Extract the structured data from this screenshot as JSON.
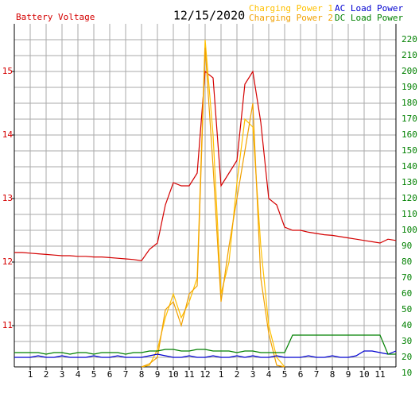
{
  "chart_data": {
    "type": "line",
    "title": "12/15/2020",
    "y_label": "Battery Voltage",
    "x": [
      0,
      0.5,
      1,
      1.5,
      2,
      2.5,
      3,
      3.5,
      4,
      4.5,
      5,
      5.5,
      6,
      6.5,
      7,
      7.5,
      8,
      8.5,
      9,
      9.5,
      10,
      10.5,
      11,
      11.5,
      12,
      12.5,
      13,
      13.5,
      14,
      14.5,
      15,
      15.5,
      16,
      16.5,
      17,
      17.5,
      18,
      18.5,
      19,
      19.5,
      20,
      20.5,
      21,
      21.5,
      22,
      22.5,
      23,
      23.5,
      24
    ],
    "xlim": [
      0,
      24
    ],
    "xticks": [
      1,
      2,
      3,
      4,
      5,
      6,
      7,
      8,
      9,
      10,
      11,
      12,
      {
        "value": 13,
        "label": "1"
      },
      {
        "value": 14,
        "label": "2"
      },
      {
        "value": 15,
        "label": "3"
      },
      {
        "value": 16,
        "label": "4"
      },
      {
        "value": 17,
        "label": "5"
      },
      {
        "value": 18,
        "label": "6"
      },
      {
        "value": 19,
        "label": "7"
      },
      {
        "value": 20,
        "label": "8"
      },
      {
        "value": 21,
        "label": "9"
      },
      {
        "value": 22,
        "label": "10"
      },
      {
        "value": 23,
        "label": "11"
      }
    ],
    "ylim": [
      10.35,
      15.75
    ],
    "yticks": [
      11,
      12,
      13,
      14,
      15
    ],
    "y2lim": [
      14,
      230
    ],
    "y2ticks": [
      10,
      20,
      30,
      40,
      50,
      60,
      70,
      80,
      90,
      100,
      110,
      120,
      130,
      140,
      150,
      160,
      170,
      180,
      190,
      200,
      210,
      220
    ],
    "grid": true,
    "series": [
      {
        "name": "Battery Voltage",
        "color": "#d40000",
        "values": [
          12.15,
          12.15,
          12.14,
          12.13,
          12.12,
          12.11,
          12.1,
          12.1,
          12.09,
          12.09,
          12.08,
          12.08,
          12.07,
          12.06,
          12.05,
          12.04,
          12.02,
          12.2,
          12.3,
          12.9,
          13.25,
          13.2,
          13.2,
          13.4,
          15.0,
          14.9,
          13.2,
          13.4,
          13.6,
          14.8,
          15.0,
          14.2,
          13.0,
          12.9,
          12.55,
          12.5,
          12.5,
          12.47,
          12.45,
          12.43,
          12.42,
          12.4,
          12.38,
          12.36,
          12.34,
          12.32,
          12.3,
          12.36,
          12.34
        ]
      },
      {
        "name": "Charging Power 1",
        "color": "#ffc000",
        "axis": "y2",
        "values": [
          null,
          null,
          null,
          null,
          null,
          null,
          null,
          null,
          null,
          null,
          null,
          null,
          null,
          null,
          null,
          null,
          14,
          15,
          25,
          45,
          60,
          45,
          55,
          70,
          220,
          160,
          60,
          80,
          130,
          170,
          165,
          90,
          40,
          20,
          14,
          null,
          null,
          null,
          null,
          null,
          null,
          null,
          null,
          null,
          null,
          null,
          null,
          null,
          null
        ]
      },
      {
        "name": "Charging Power 2",
        "color": "#f0a000",
        "axis": "y2",
        "values": [
          null,
          null,
          null,
          null,
          null,
          null,
          null,
          null,
          null,
          null,
          null,
          null,
          null,
          null,
          null,
          null,
          14,
          16,
          20,
          50,
          55,
          40,
          60,
          65,
          215,
          140,
          55,
          90,
          120,
          150,
          180,
          70,
          35,
          15,
          14,
          null,
          null,
          null,
          null,
          null,
          null,
          null,
          null,
          null,
          null,
          null,
          null,
          null,
          null
        ]
      },
      {
        "name": "AC Load Power",
        "color": "#0000d0",
        "axis": "y2",
        "values": [
          20,
          20,
          20,
          21,
          20,
          20,
          21,
          20,
          20,
          20,
          21,
          20,
          20,
          21,
          20,
          20,
          20,
          21,
          22,
          21,
          20,
          20,
          21,
          20,
          20,
          21,
          20,
          20,
          21,
          20,
          21,
          20,
          20,
          21,
          20,
          20,
          20,
          21,
          20,
          20,
          21,
          20,
          20,
          21,
          24,
          24,
          23,
          22,
          24
        ]
      },
      {
        "name": "DC Load Power",
        "color": "#008000",
        "axis": "y2",
        "values": [
          23,
          23,
          23,
          23,
          22,
          23,
          23,
          22,
          23,
          23,
          22,
          23,
          23,
          23,
          22,
          23,
          23,
          24,
          24,
          25,
          25,
          24,
          24,
          25,
          25,
          24,
          24,
          24,
          23,
          24,
          24,
          23,
          23,
          23,
          23,
          34,
          34,
          34,
          34,
          34,
          34,
          34,
          34,
          34,
          34,
          34,
          34,
          22,
          22
        ]
      }
    ]
  }
}
